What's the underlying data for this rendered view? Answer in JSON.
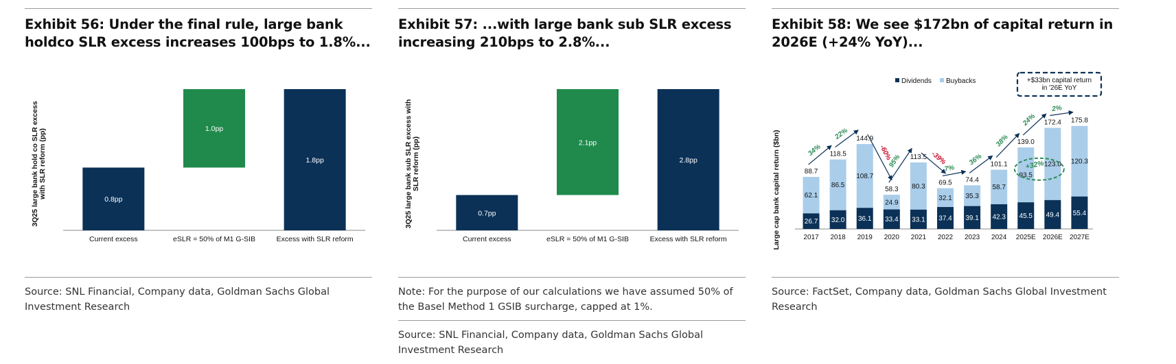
{
  "colors": {
    "navy": "#0b3157",
    "green": "#1f8a4c",
    "lightblue": "#aacdea",
    "arrowGreen": "#2e8b57",
    "arrowRed": "#c8102e"
  },
  "exhibit56": {
    "title": "Exhibit 56: Under the final rule, large bank holdco SLR excess increases 100bps to 1.8%...",
    "source": "Source: SNL Financial, Company data, Goldman Sachs Global Investment Research",
    "chart_data": {
      "type": "bar",
      "subtype": "waterfall",
      "ylabel": "3Q25 large bank hold co SLR excess with SLR reform (pp)",
      "ylim": [
        0,
        1.8
      ],
      "categories": [
        "Current excess",
        "eSLR = 50% of M1 G-SIB",
        "Excess with SLR reform"
      ],
      "values": [
        0.8,
        1.0,
        1.8
      ],
      "labels": [
        "0.8pp",
        "1.0pp",
        "1.8pp"
      ],
      "kinds": [
        "total",
        "increment",
        "total"
      ]
    }
  },
  "exhibit57": {
    "title": "Exhibit 57: ...with large bank sub SLR excess increasing 210bps to 2.8%...",
    "note": "Note: For the purpose of our calculations we have assumed 50% of the Basel Method 1 GSIB surcharge, capped at 1%.",
    "source": "Source: SNL Financial, Company data, Goldman Sachs Global Investment Research",
    "chart_data": {
      "type": "bar",
      "subtype": "waterfall",
      "ylabel": "3Q25 large bank sub SLR excess with SLR reform (pp)",
      "ylim": [
        0,
        2.8
      ],
      "categories": [
        "Current excess",
        "eSLR = 50% of M1 G-SIB",
        "Excess with SLR reform"
      ],
      "values": [
        0.7,
        2.1,
        2.8
      ],
      "labels": [
        "0.7pp",
        "2.1pp",
        "2.8pp"
      ],
      "kinds": [
        "total",
        "increment",
        "total"
      ]
    }
  },
  "exhibit58": {
    "title": "Exhibit 58: We see $172bn of capital return in 2026E (+24% YoY)...",
    "source": "Source: FactSet, Company data, Goldman Sachs Global Investment Research",
    "chart_data": {
      "type": "bar",
      "subtype": "stacked",
      "ylabel": "Large cap bank capital return ($bn)",
      "ylim": [
        0,
        180
      ],
      "categories": [
        "2017",
        "2018",
        "2019",
        "2020",
        "2021",
        "2022",
        "2023",
        "2024",
        "2025E",
        "2026E",
        "2027E"
      ],
      "series": [
        {
          "name": "Dividends",
          "values": [
            26.7,
            32.0,
            36.1,
            33.4,
            33.1,
            37.4,
            39.1,
            42.3,
            45.5,
            49.4,
            55.4
          ],
          "labels": [
            "26.7",
            "32.0",
            "36.1",
            "33.4",
            "33.1",
            "37.4",
            "39.1",
            "42.3",
            "45.5",
            "49.4",
            "55.4"
          ]
        },
        {
          "name": "Buybacks",
          "values": [
            62.1,
            86.5,
            108.7,
            24.9,
            80.3,
            32.1,
            35.3,
            58.7,
            93.5,
            123.0,
            120.3
          ],
          "labels": [
            "62.1",
            "86.5",
            "108.7",
            "24.9",
            "80.3",
            "32.1",
            "35.3",
            "58.7",
            "93.5",
            "123.0",
            "120.3"
          ]
        }
      ],
      "totals": [
        88.7,
        118.5,
        144.9,
        58.3,
        113.5,
        69.5,
        74.4,
        101.1,
        139.0,
        172.4,
        175.8
      ],
      "total_labels": [
        "88.7",
        "118.5",
        "144.9",
        "58.3",
        "113.5",
        "69.5",
        "74.4",
        "101.1",
        "139.0",
        "172.4",
        "175.8"
      ],
      "yoy_annotations": [
        {
          "text": "34%",
          "direction": "up",
          "from": 0,
          "to": 1
        },
        {
          "text": "22%",
          "direction": "up",
          "from": 1,
          "to": 2
        },
        {
          "text": "-60%",
          "direction": "down",
          "from": 2,
          "to": 3
        },
        {
          "text": "95%",
          "direction": "up",
          "from": 3,
          "to": 4
        },
        {
          "text": "-39%",
          "direction": "down",
          "from": 4,
          "to": 5
        },
        {
          "text": "7%",
          "direction": "up",
          "from": 5,
          "to": 6
        },
        {
          "text": "36%",
          "direction": "up",
          "from": 6,
          "to": 7
        },
        {
          "text": "38%",
          "direction": "up",
          "from": 7,
          "to": 8
        },
        {
          "text": "24%",
          "direction": "up",
          "from": 8,
          "to": 9
        },
        {
          "text": "2%",
          "direction": "up",
          "from": 9,
          "to": 10
        }
      ],
      "callout": "+$33bn capital return in '26E YoY",
      "buyback_growth_label": "+32%",
      "legend": [
        "Dividends",
        "Buybacks"
      ],
      "legend_position": "top"
    }
  }
}
